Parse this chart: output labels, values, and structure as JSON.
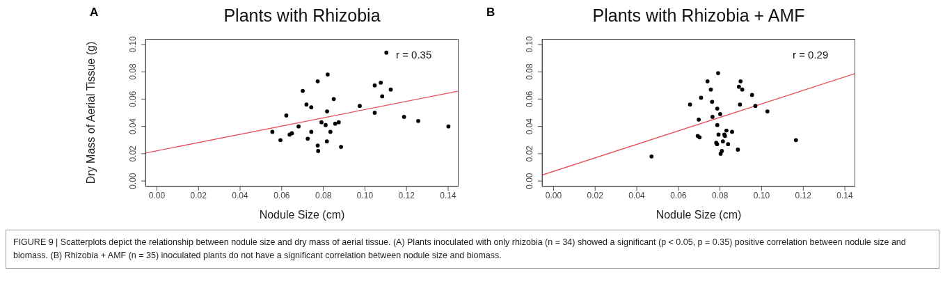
{
  "chart_data": [
    {
      "type": "scatter",
      "title": "Plants with Rhizobia",
      "xlabel": "Nodule Size (cm)",
      "ylabel": "Dry Mass of Aerial Tissue (g)",
      "annotations": [
        "A",
        "r = 0.35",
        "FIGURE 9 | Scatterplots depict the relationship between nodule size and dry mass of aerial tissue. (A) Plants inoculated with only rhizobia (n = 34) showed a significant (p < 0.05, p = 0.35) positive correlation between nodule size and biomass. (B) Rhizobia + AMF (n = 35) inoculated plants do not have a significant correlation between nodule size and biomass."
      ],
      "xlim": [
        -0.0055,
        0.145
      ],
      "ylim": [
        -0.004,
        0.104
      ],
      "xticks": [
        {
          "value": 0,
          "label": "0.00"
        },
        {
          "value": 0.02,
          "label": "0.02"
        },
        {
          "value": 0.04,
          "label": "0.04"
        },
        {
          "value": 0.06,
          "label": "0.06"
        },
        {
          "value": 0.08,
          "label": "0.08"
        },
        {
          "value": 0.1,
          "label": "0.10"
        },
        {
          "value": 0.12,
          "label": "0.12"
        },
        {
          "value": 0.14,
          "label": "0.14"
        }
      ],
      "yticks": [
        {
          "value": 0,
          "label": "0.00"
        },
        {
          "value": 0.02,
          "label": "0.02"
        },
        {
          "value": 0.04,
          "label": "0.04"
        },
        {
          "value": 0.06,
          "label": "0.06"
        },
        {
          "value": 0.08,
          "label": "0.08"
        },
        {
          "value": 0.1,
          "label": "0.10"
        }
      ],
      "series": [
        {
          "type": "scatter",
          "marker": "circle",
          "color": "#000000",
          "x": [
            0.0555,
            0.0594,
            0.0622,
            0.0638,
            0.0649,
            0.0681,
            0.0701,
            0.0719,
            0.0725,
            0.0742,
            0.0742,
            0.0773,
            0.0773,
            0.0775,
            0.0791,
            0.0811,
            0.0821,
            0.0818,
            0.0817,
            0.0834,
            0.085,
            0.0857,
            0.0874,
            0.0885,
            0.0975,
            0.1047,
            0.1047,
            0.1076,
            0.1083,
            0.1103,
            0.1124,
            0.1188,
            0.1256,
            0.1401
          ],
          "values": [
            0.036,
            0.03,
            0.048,
            0.034,
            0.035,
            0.04,
            0.066,
            0.056,
            0.031,
            0.054,
            0.036,
            0.073,
            0.026,
            0.022,
            0.043,
            0.041,
            0.078,
            0.051,
            0.029,
            0.036,
            0.06,
            0.042,
            0.043,
            0.025,
            0.055,
            0.07,
            0.05,
            0.072,
            0.062,
            0.094,
            0.067,
            0.047,
            0.044,
            0.04
          ]
        },
        {
          "type": "line",
          "color": "#e8505b",
          "line_style": "solid",
          "x": [
            -0.0055,
            0.145
          ],
          "values": [
            0.0205,
            0.0659
          ]
        }
      ]
    },
    {
      "type": "scatter",
      "title": "Plants with Rhizobia + AMF",
      "xlabel": "Nodule Size (cm)",
      "annotations": [
        "B",
        "r = 0.29"
      ],
      "xlim": [
        -0.0055,
        0.145
      ],
      "ylim": [
        -0.004,
        0.104
      ],
      "xticks": [
        {
          "value": 0,
          "label": "0.00"
        },
        {
          "value": 0.02,
          "label": "0.02"
        },
        {
          "value": 0.04,
          "label": "0.04"
        },
        {
          "value": 0.06,
          "label": "0.06"
        },
        {
          "value": 0.08,
          "label": "0.08"
        },
        {
          "value": 0.1,
          "label": "0.10"
        },
        {
          "value": 0.12,
          "label": "0.12"
        },
        {
          "value": 0.14,
          "label": "0.14"
        }
      ],
      "yticks": [
        {
          "value": 0,
          "label": "0.00"
        },
        {
          "value": 0.02,
          "label": "0.02"
        },
        {
          "value": 0.04,
          "label": "0.04"
        },
        {
          "value": 0.06,
          "label": "0.06"
        },
        {
          "value": 0.08,
          "label": "0.08"
        },
        {
          "value": 0.1,
          "label": "0.10"
        }
      ],
      "series": [
        {
          "type": "scatter",
          "marker": "circle",
          "color": "#000000",
          "x": [
            0.0471,
            0.0656,
            0.0698,
            0.0693,
            0.0702,
            0.0709,
            0.074,
            0.0756,
            0.0762,
            0.0764,
            0.0782,
            0.0786,
            0.0787,
            0.0787,
            0.0791,
            0.0793,
            0.0801,
            0.0803,
            0.0809,
            0.0814,
            0.0821,
            0.0824,
            0.0831,
            0.0839,
            0.0858,
            0.0886,
            0.0891,
            0.0896,
            0.0899,
            0.0907,
            0.0954,
            0.097,
            0.1028,
            0.1165
          ],
          "values": [
            0.018,
            0.056,
            0.045,
            0.033,
            0.032,
            0.061,
            0.073,
            0.067,
            0.058,
            0.047,
            0.028,
            0.027,
            0.053,
            0.041,
            0.079,
            0.034,
            0.049,
            0.02,
            0.022,
            0.029,
            0.034,
            0.033,
            0.037,
            0.027,
            0.036,
            0.023,
            0.069,
            0.056,
            0.073,
            0.067,
            0.063,
            0.055,
            0.051,
            0.03
          ]
        },
        {
          "type": "line",
          "color": "#e8505b",
          "line_style": "solid",
          "x": [
            -0.0055,
            0.145
          ],
          "values": [
            0.0044,
            0.0787
          ]
        }
      ]
    }
  ]
}
